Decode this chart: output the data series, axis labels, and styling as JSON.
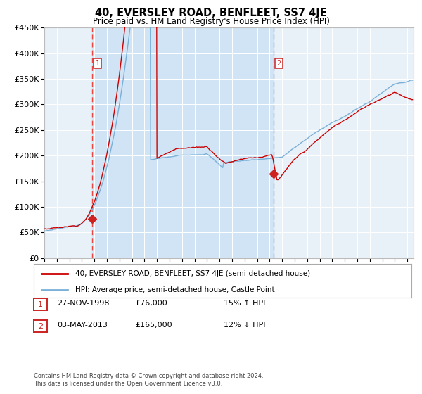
{
  "title": "40, EVERSLEY ROAD, BENFLEET, SS7 4JE",
  "subtitle": "Price paid vs. HM Land Registry's House Price Index (HPI)",
  "legend_line1": "40, EVERSLEY ROAD, BENFLEET, SS7 4JE (semi-detached house)",
  "legend_line2": "HPI: Average price, semi-detached house, Castle Point",
  "sale1_date": "27-NOV-1998",
  "sale1_price": 76000,
  "sale1_label": "15% ↑ HPI",
  "sale2_date": "03-MAY-2013",
  "sale2_price": 165000,
  "sale2_label": "12% ↓ HPI",
  "footnote1": "Contains HM Land Registry data © Crown copyright and database right 2024.",
  "footnote2": "This data is licensed under the Open Government Licence v3.0.",
  "ymin": 0,
  "ymax": 450000,
  "xmin": 1995.0,
  "xmax": 2024.5,
  "plot_bg_color": "#e8f0f8",
  "span_bg_color": "#d0e4f5",
  "line_color_red": "#cc0000",
  "line_color_blue": "#7ab0d8",
  "vline1_color": "#ee4444",
  "vline2_color": "#99aacc",
  "box_color": "#cc2222",
  "sale1_x": 1998.833,
  "sale2_x": 2013.333
}
